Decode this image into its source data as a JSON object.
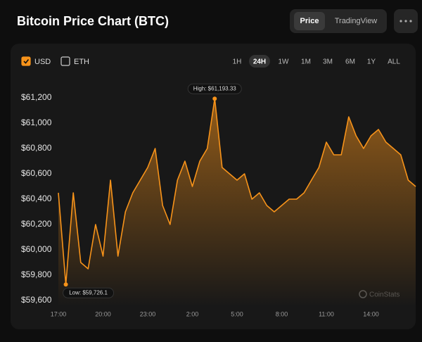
{
  "header": {
    "title": "Bitcoin Price Chart (BTC)",
    "tabs": [
      "Price",
      "TradingView"
    ],
    "active_tab": "Price"
  },
  "currencies": [
    {
      "label": "USD",
      "checked": true
    },
    {
      "label": "ETH",
      "checked": false
    }
  ],
  "ranges": [
    "1H",
    "24H",
    "1W",
    "1M",
    "3M",
    "6M",
    "1Y",
    "ALL"
  ],
  "active_range": "24H",
  "watermark": "CoinStats",
  "chart_data": {
    "type": "line",
    "categories": [
      "17:00",
      null,
      null,
      null,
      null,
      null,
      "20:00",
      null,
      null,
      null,
      null,
      null,
      "23:00",
      null,
      null,
      null,
      null,
      null,
      "2:00",
      null,
      null,
      null,
      null,
      null,
      "5:00",
      null,
      null,
      null,
      null,
      null,
      "8:00",
      null,
      null,
      null,
      null,
      null,
      "11:00",
      null,
      null,
      null,
      null,
      null,
      "14:00",
      null,
      null,
      null,
      null,
      null,
      null
    ],
    "series": [
      {
        "color": "#f7931a",
        "values": [
          60450,
          59726.1,
          60450,
          59900,
          59850,
          60200,
          59950,
          60550,
          59950,
          60300,
          60450,
          60550,
          60650,
          60800,
          60350,
          60200,
          60550,
          60700,
          60500,
          60700,
          60800,
          61193.33,
          60650,
          60600,
          60550,
          60600,
          60400,
          60450,
          60350,
          60300,
          60350,
          60400,
          60400,
          60450,
          60550,
          60650,
          60850,
          60750,
          60750,
          61050,
          60900,
          60800,
          60900,
          60950,
          60850,
          60800,
          60750,
          60550,
          60500
        ]
      }
    ],
    "annotations": [
      "High: $61,193.33",
      "Low: $59,726.1"
    ],
    "ylim": [
      59550,
      61250
    ],
    "yticks": [
      {
        "value": 59600,
        "label": "$59,600"
      },
      {
        "value": 59800,
        "label": "$59,800"
      },
      {
        "value": 60000,
        "label": "$60,000"
      },
      {
        "value": 60200,
        "label": "$60,200"
      },
      {
        "value": 60400,
        "label": "$60,400"
      },
      {
        "value": 60600,
        "label": "$60,600"
      },
      {
        "value": 60800,
        "label": "$60,800"
      },
      {
        "value": 61000,
        "label": "$61,000"
      },
      {
        "value": 61200,
        "label": "$61,200"
      }
    ]
  }
}
